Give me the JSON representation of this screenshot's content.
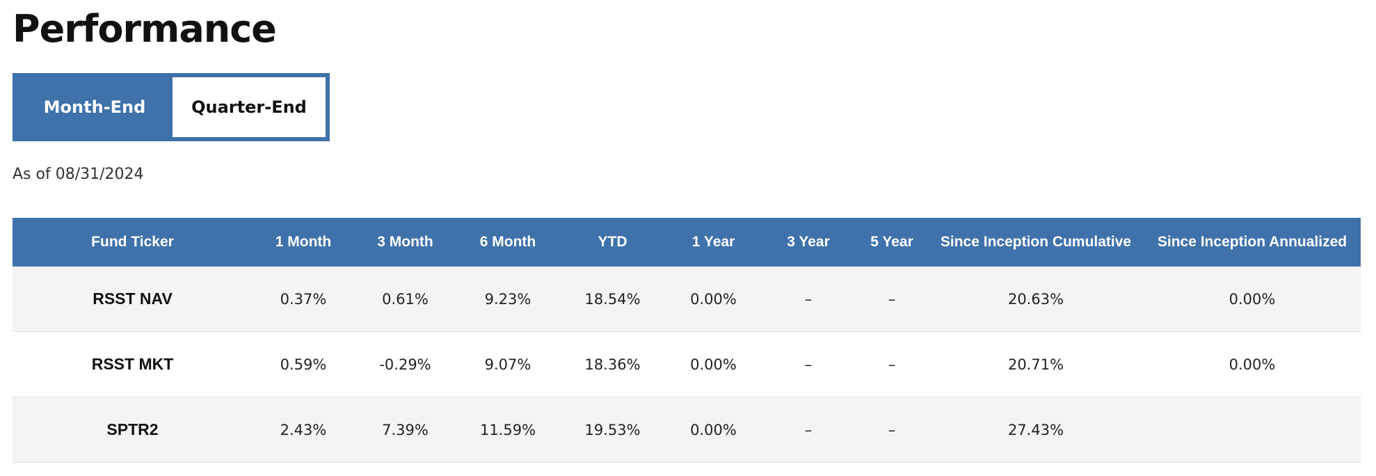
{
  "page": {
    "title": "Performance",
    "as_of": "As of 08/31/2024"
  },
  "tabs": [
    {
      "label": "Month-End",
      "active": true
    },
    {
      "label": "Quarter-End",
      "active": false
    }
  ],
  "colors": {
    "accent": "#3f72ab",
    "row_alt": "#f4f4f4"
  },
  "table": {
    "headers": [
      "Fund Ticker",
      "1 Month",
      "3 Month",
      "6 Month",
      "YTD",
      "1 Year",
      "3 Year",
      "5 Year",
      "Since Inception Cumulative",
      "Since Inception Annualized"
    ],
    "rows": [
      {
        "ticker": "RSST NAV",
        "m1": "0.37%",
        "m3": "0.61%",
        "m6": "9.23%",
        "ytd": "18.54%",
        "y1": "0.00%",
        "y3": "–",
        "y5": "–",
        "si_cum": "20.63%",
        "si_ann": "0.00%"
      },
      {
        "ticker": "RSST MKT",
        "m1": "0.59%",
        "m3": "-0.29%",
        "m6": "9.07%",
        "ytd": "18.36%",
        "y1": "0.00%",
        "y3": "–",
        "y5": "–",
        "si_cum": "20.71%",
        "si_ann": "0.00%"
      },
      {
        "ticker": "SPTR2",
        "m1": "2.43%",
        "m3": "7.39%",
        "m6": "11.59%",
        "ytd": "19.53%",
        "y1": "0.00%",
        "y3": "–",
        "y5": "–",
        "si_cum": "27.43%",
        "si_ann": ""
      }
    ]
  }
}
